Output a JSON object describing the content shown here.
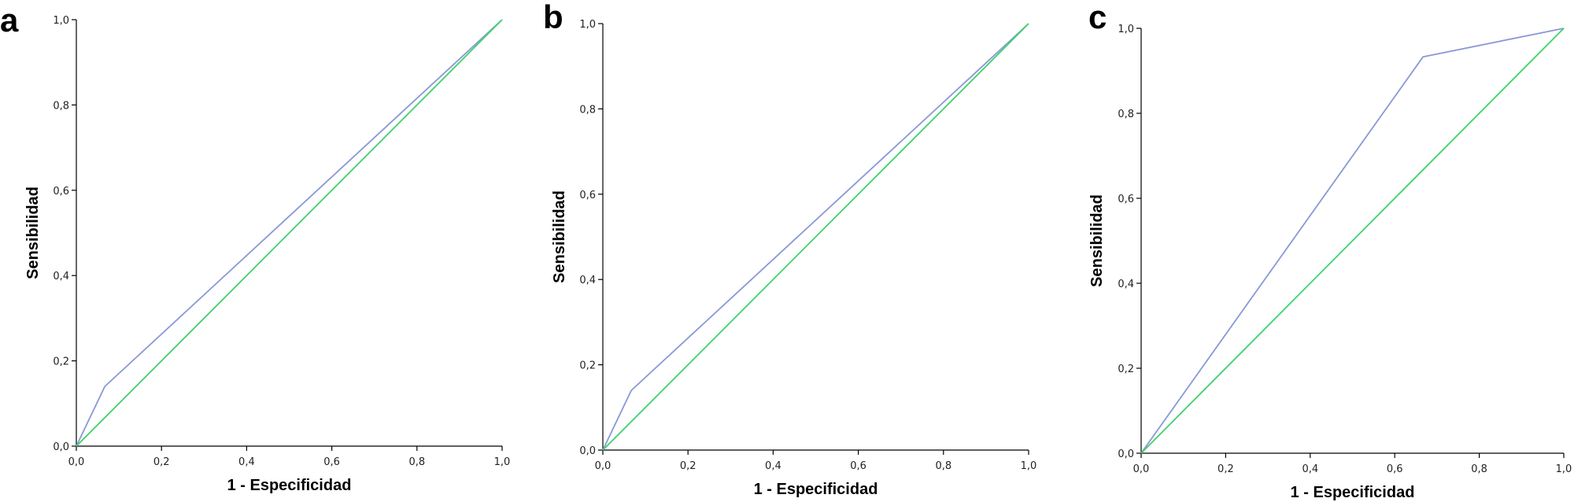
{
  "colors": {
    "roc": "#8a98d6",
    "reference": "#3fd26b",
    "axis": "#000000"
  },
  "chart_data": [
    {
      "type": "line",
      "panel": "a",
      "xlabel": "1 - Especificidad",
      "ylabel": "Sensibilidad",
      "xlim": [
        0,
        1
      ],
      "ylim": [
        0,
        1
      ],
      "xticks": [
        "0,0",
        "0,2",
        "0,4",
        "0,6",
        "0,8",
        "1,0"
      ],
      "yticks": [
        "0,0",
        "0,2",
        "0,4",
        "0,6",
        "0,8",
        "1,0"
      ],
      "grid": false,
      "series": [
        {
          "role": "roc",
          "x": [
            0,
            0.067,
            1
          ],
          "y": [
            0,
            0.14,
            1
          ]
        },
        {
          "role": "reference",
          "x": [
            0,
            1
          ],
          "y": [
            0,
            1
          ]
        }
      ]
    },
    {
      "type": "line",
      "panel": "b",
      "xlabel": "1 - Especificidad",
      "ylabel": "Sensibilidad",
      "xlim": [
        0,
        1
      ],
      "ylim": [
        0,
        1
      ],
      "xticks": [
        "0,0",
        "0,2",
        "0,4",
        "0,6",
        "0,8",
        "1,0"
      ],
      "yticks": [
        "0,0",
        "0,2",
        "0,4",
        "0,6",
        "0,8",
        "1,0"
      ],
      "grid": false,
      "series": [
        {
          "role": "roc",
          "x": [
            0,
            0.067,
            1
          ],
          "y": [
            0,
            0.14,
            1
          ]
        },
        {
          "role": "reference",
          "x": [
            0,
            1
          ],
          "y": [
            0,
            1
          ]
        }
      ]
    },
    {
      "type": "line",
      "panel": "c",
      "xlabel": "1 - Especificidad",
      "ylabel": "Sensibilidad",
      "xlim": [
        0,
        1
      ],
      "ylim": [
        0,
        1
      ],
      "xticks": [
        "0,0",
        "0,2",
        "0,4",
        "0,6",
        "0,8",
        "1,0"
      ],
      "yticks": [
        "0,0",
        "0,2",
        "0,4",
        "0,6",
        "0,8",
        "1,0"
      ],
      "grid": false,
      "series": [
        {
          "role": "roc",
          "x": [
            0,
            0.667,
            1
          ],
          "y": [
            0,
            0.933,
            1
          ]
        },
        {
          "role": "reference",
          "x": [
            0,
            1
          ],
          "y": [
            0,
            1
          ]
        }
      ]
    }
  ]
}
